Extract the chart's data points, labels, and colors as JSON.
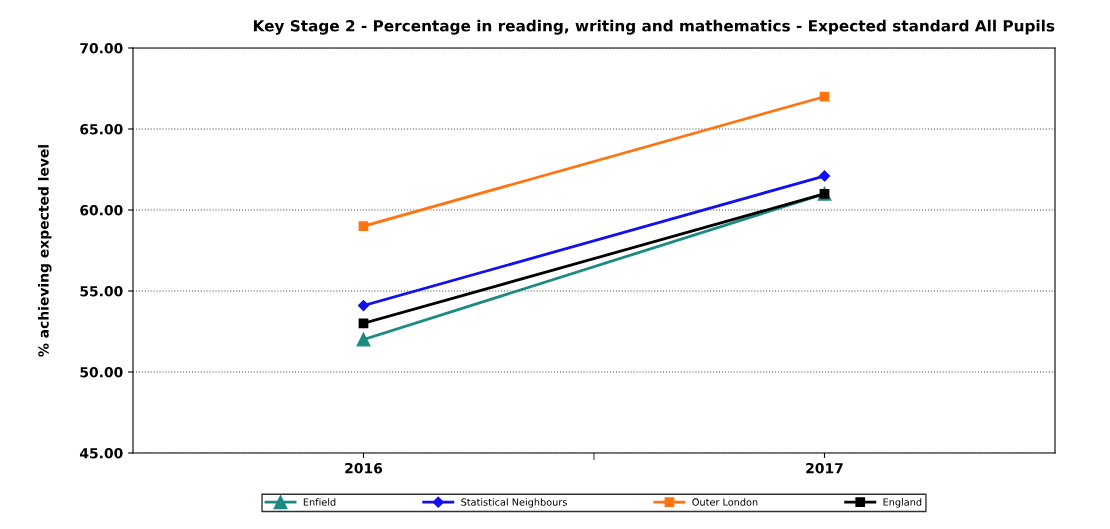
{
  "chart_data": {
    "type": "line",
    "title": "Key Stage 2 - Percentage in reading, writing and mathematics - Expected standard All Pupils",
    "ylabel": "% achieving expected level",
    "categories": [
      "2016",
      "2017"
    ],
    "series": [
      {
        "name": "Enfield",
        "color": "#1a8a82",
        "values": [
          52.0,
          61.0
        ],
        "marker": "triangle"
      },
      {
        "name": "Statistical Neighbours",
        "color": "#1010f0",
        "values": [
          54.1,
          62.1
        ],
        "marker": "diamond"
      },
      {
        "name": "Outer London",
        "color": "#ff7410",
        "values": [
          59.0,
          67.0
        ],
        "marker": "square"
      },
      {
        "name": "England",
        "color": "#000000",
        "values": [
          53.0,
          61.0
        ],
        "marker": "square"
      }
    ],
    "ylim": [
      45,
      70
    ],
    "yticks": [
      {
        "value": 45,
        "label": "45.00"
      },
      {
        "value": 50,
        "label": "50.00"
      },
      {
        "value": 55,
        "label": "55.00"
      },
      {
        "value": 60,
        "label": "60.00"
      },
      {
        "value": 65,
        "label": "65.00"
      },
      {
        "value": 70,
        "label": "70.00"
      }
    ],
    "grid": "y",
    "legend": "bottom",
    "line_style": "solid"
  }
}
